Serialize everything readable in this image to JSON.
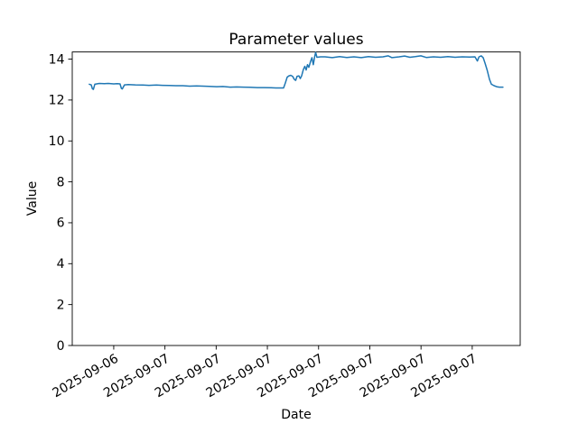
{
  "chart_data": {
    "type": "line",
    "title": "Parameter values",
    "xlabel": "Date",
    "ylabel": "Value",
    "line_color": "#1f77b4",
    "background_color": "#ffffff",
    "grid": false,
    "legend": false,
    "ylim": [
      0,
      14.35
    ],
    "yticks": [
      0,
      2,
      4,
      6,
      8,
      10,
      12,
      14
    ],
    "x_unit": "hours relative to first x tick",
    "xlim": [
      -2.43,
      23.81
    ],
    "xticks": [
      {
        "pos": 0,
        "label": "2025-09-06"
      },
      {
        "pos": 3,
        "label": "2025-09-07"
      },
      {
        "pos": 6,
        "label": "2025-09-07"
      },
      {
        "pos": 9,
        "label": "2025-09-07"
      },
      {
        "pos": 12,
        "label": "2025-09-07"
      },
      {
        "pos": 15,
        "label": "2025-09-07"
      },
      {
        "pos": 18,
        "label": "2025-09-07"
      },
      {
        "pos": 21,
        "label": "2025-09-07"
      }
    ],
    "series": [
      {
        "name": "parameter",
        "points": [
          [
            -1.43,
            12.77
          ],
          [
            -1.32,
            12.74
          ],
          [
            -1.25,
            12.55
          ],
          [
            -1.19,
            12.52
          ],
          [
            -1.11,
            12.77
          ],
          [
            -0.85,
            12.81
          ],
          [
            -0.55,
            12.8
          ],
          [
            -0.32,
            12.81
          ],
          [
            0.0,
            12.79
          ],
          [
            0.21,
            12.8
          ],
          [
            0.37,
            12.79
          ],
          [
            0.45,
            12.57
          ],
          [
            0.5,
            12.54
          ],
          [
            0.63,
            12.74
          ],
          [
            0.85,
            12.76
          ],
          [
            1.27,
            12.74
          ],
          [
            1.7,
            12.73
          ],
          [
            2.06,
            12.72
          ],
          [
            2.5,
            12.73
          ],
          [
            2.86,
            12.72
          ],
          [
            3.25,
            12.71
          ],
          [
            3.65,
            12.7
          ],
          [
            4.05,
            12.7
          ],
          [
            4.44,
            12.68
          ],
          [
            4.85,
            12.69
          ],
          [
            5.24,
            12.68
          ],
          [
            5.6,
            12.67
          ],
          [
            6.03,
            12.65
          ],
          [
            6.4,
            12.66
          ],
          [
            6.83,
            12.63
          ],
          [
            7.2,
            12.64
          ],
          [
            7.62,
            12.63
          ],
          [
            8.0,
            12.62
          ],
          [
            8.41,
            12.61
          ],
          [
            8.8,
            12.61
          ],
          [
            9.21,
            12.6
          ],
          [
            9.5,
            12.59
          ],
          [
            9.74,
            12.59
          ],
          [
            9.95,
            12.59
          ],
          [
            10.05,
            12.83
          ],
          [
            10.16,
            13.12
          ],
          [
            10.26,
            13.18
          ],
          [
            10.37,
            13.21
          ],
          [
            10.48,
            13.16
          ],
          [
            10.58,
            13.01
          ],
          [
            10.66,
            12.96
          ],
          [
            10.74,
            13.16
          ],
          [
            10.85,
            13.18
          ],
          [
            10.93,
            13.05
          ],
          [
            11.01,
            13.18
          ],
          [
            11.11,
            13.49
          ],
          [
            11.19,
            13.65
          ],
          [
            11.27,
            13.47
          ],
          [
            11.35,
            13.73
          ],
          [
            11.43,
            13.6
          ],
          [
            11.53,
            13.89
          ],
          [
            11.61,
            14.07
          ],
          [
            11.69,
            13.73
          ],
          [
            11.77,
            14.11
          ],
          [
            11.83,
            14.33
          ],
          [
            11.9,
            14.09
          ],
          [
            12.12,
            14.11
          ],
          [
            12.38,
            14.11
          ],
          [
            12.8,
            14.07
          ],
          [
            13.23,
            14.12
          ],
          [
            13.65,
            14.08
          ],
          [
            14.07,
            14.11
          ],
          [
            14.5,
            14.07
          ],
          [
            14.92,
            14.12
          ],
          [
            15.34,
            14.09
          ],
          [
            15.77,
            14.11
          ],
          [
            16.08,
            14.16
          ],
          [
            16.3,
            14.07
          ],
          [
            16.72,
            14.11
          ],
          [
            17.04,
            14.15
          ],
          [
            17.35,
            14.09
          ],
          [
            17.67,
            14.12
          ],
          [
            17.99,
            14.16
          ],
          [
            18.31,
            14.08
          ],
          [
            18.73,
            14.11
          ],
          [
            19.15,
            14.09
          ],
          [
            19.58,
            14.12
          ],
          [
            20.0,
            14.09
          ],
          [
            20.42,
            14.11
          ],
          [
            20.85,
            14.1
          ],
          [
            21.16,
            14.11
          ],
          [
            21.3,
            13.91
          ],
          [
            21.4,
            14.11
          ],
          [
            21.53,
            14.16
          ],
          [
            21.64,
            14.07
          ],
          [
            21.75,
            13.8
          ],
          [
            21.88,
            13.45
          ],
          [
            22.01,
            13.01
          ],
          [
            22.12,
            12.77
          ],
          [
            22.28,
            12.7
          ],
          [
            22.43,
            12.65
          ],
          [
            22.59,
            12.63
          ],
          [
            22.8,
            12.63
          ]
        ]
      }
    ]
  }
}
